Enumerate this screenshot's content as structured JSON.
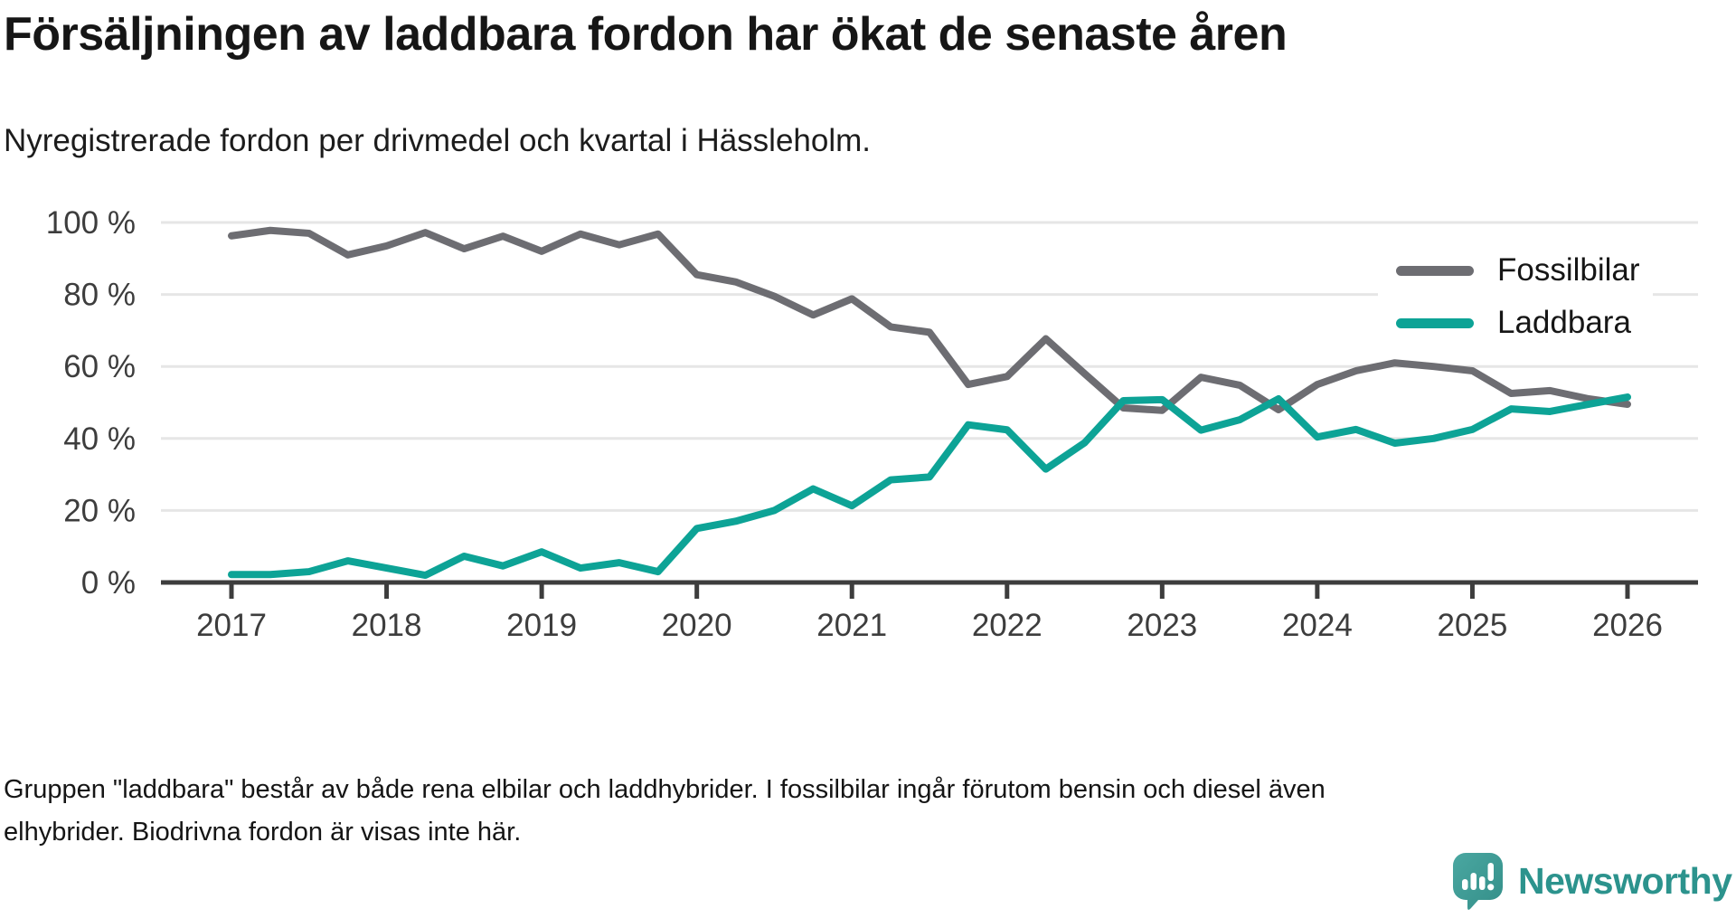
{
  "header": {
    "title": "Försäljningen av laddbara fordon har ökat de senaste åren",
    "subtitle": "Nyregistrerade fordon per drivmedel och kvartal i Hässleholm."
  },
  "chart_data": {
    "type": "line",
    "title": "Försäljningen av laddbara fordon har ökat de senaste åren",
    "subtitle": "Nyregistrerade fordon per drivmedel och kvartal i Hässleholm.",
    "xlabel": "",
    "ylabel": "",
    "ylim": [
      0,
      100
    ],
    "grid": "horizontal",
    "legend_position": "top-right",
    "y_tick_labels": [
      "0 %",
      "20 %",
      "40 %",
      "60 %",
      "80 %",
      "100 %"
    ],
    "x_label_years": [
      "2017",
      "2018",
      "2019",
      "2020",
      "2021",
      "2022",
      "2023",
      "2024",
      "2025",
      "2026"
    ],
    "categories": [
      "2017 Q1",
      "2017 Q2",
      "2017 Q3",
      "2017 Q4",
      "2018 Q1",
      "2018 Q2",
      "2018 Q3",
      "2018 Q4",
      "2019 Q1",
      "2019 Q2",
      "2019 Q3",
      "2019 Q4",
      "2020 Q1",
      "2020 Q2",
      "2020 Q3",
      "2020 Q4",
      "2021 Q1",
      "2021 Q2",
      "2021 Q3",
      "2021 Q4",
      "2022 Q1",
      "2022 Q2",
      "2022 Q3",
      "2022 Q4",
      "2023 Q1",
      "2023 Q2",
      "2023 Q3",
      "2023 Q4",
      "2024 Q1",
      "2024 Q2",
      "2024 Q3",
      "2024 Q4",
      "2025 Q1",
      "2025 Q2",
      "2025 Q3",
      "2025 Q4",
      "2026 Q1"
    ],
    "series": [
      {
        "name": "Fossilbilar",
        "color": "#6d6d72",
        "values": [
          96.3,
          97.8,
          97.0,
          91.0,
          93.5,
          97.2,
          92.7,
          96.2,
          92.0,
          96.8,
          93.8,
          96.8,
          85.5,
          83.5,
          79.5,
          74.3,
          78.8,
          71.0,
          69.5,
          55.0,
          57.2,
          67.7,
          58.0,
          48.5,
          47.8,
          57.0,
          54.8,
          48.0,
          55.0,
          58.8,
          61.0,
          60.0,
          58.8,
          52.5,
          53.3,
          51.0,
          49.5
        ]
      },
      {
        "name": "Laddbara",
        "color": "#0da396",
        "values": [
          2.2,
          2.2,
          3.0,
          6.0,
          4.0,
          2.0,
          7.3,
          4.6,
          8.5,
          4.0,
          5.5,
          3.0,
          15.0,
          17.0,
          20.0,
          26.0,
          21.3,
          28.5,
          29.3,
          43.8,
          42.4,
          31.5,
          38.8,
          50.5,
          50.8,
          42.3,
          45.2,
          51.0,
          40.4,
          42.5,
          38.7,
          40.0,
          42.5,
          48.2,
          47.5,
          49.5,
          51.5
        ]
      }
    ],
    "axis_color": "#3d3d3d",
    "grid_color": "#e6e6e6",
    "tick_label_color": "#3d3d3d"
  },
  "footnote": {
    "lines": [
      "Gruppen \"laddbara\" består av både rena elbilar och laddhybrider. I fossilbilar ingår förutom bensin och diesel även",
      "elhybrider. Biodrivna fordon är visas inte här."
    ]
  },
  "footer": {
    "brand": "Newsworthy",
    "brand_color": "#2c938d",
    "logo_color_top": "#4aa7a1",
    "logo_color_bottom": "#348f89"
  }
}
